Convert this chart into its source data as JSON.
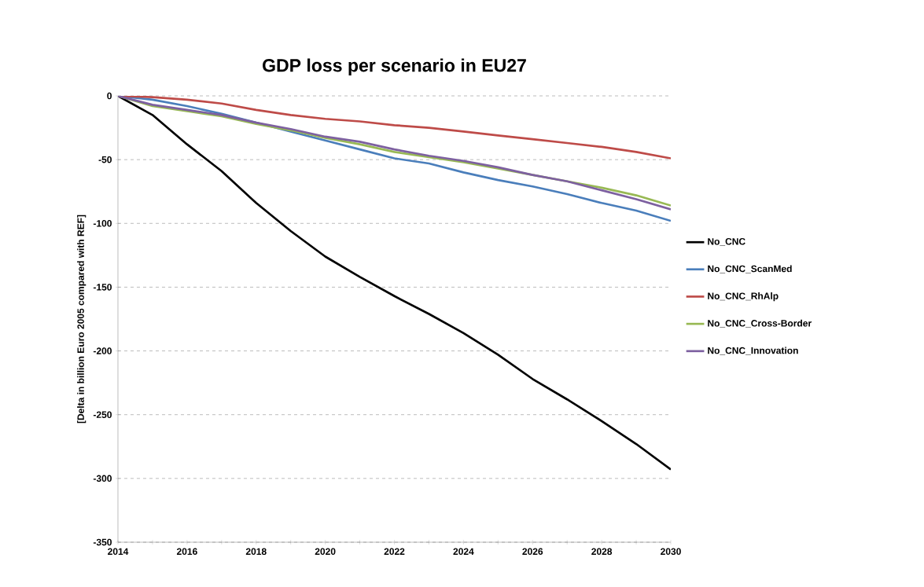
{
  "chart_data": {
    "type": "line",
    "title": "GDP loss per scenario in EU27",
    "ylabel": "[Delta in billion Euro 2005 compared with REF]",
    "x": [
      2014,
      2015,
      2016,
      2017,
      2018,
      2019,
      2020,
      2021,
      2022,
      2023,
      2024,
      2025,
      2026,
      2027,
      2028,
      2029,
      2030
    ],
    "series": [
      {
        "name": "No_CNC",
        "color": "#000000",
        "values": [
          0,
          -15,
          -38,
          -59,
          -84,
          -106,
          -126,
          -142,
          -157,
          -171,
          -186,
          -203,
          -222,
          -238,
          -255,
          -273,
          -293
        ]
      },
      {
        "name": "No_CNC_ScanMed",
        "color": "#4a7ebb",
        "values": [
          0,
          -3,
          -8,
          -14,
          -21,
          -28,
          -35,
          -42,
          -49,
          -53,
          -60,
          -66,
          -71,
          -77,
          -84,
          -90,
          -98
        ]
      },
      {
        "name": "No_CNC_RhAlp",
        "color": "#be4b48",
        "values": [
          0,
          -1,
          -3,
          -6,
          -11,
          -15,
          -18,
          -20,
          -23,
          -25,
          -28,
          -31,
          -34,
          -37,
          -40,
          -44,
          -49
        ]
      },
      {
        "name": "No_CNC_Cross-Border",
        "color": "#98b954",
        "values": [
          0,
          -8,
          -12,
          -16,
          -22,
          -27,
          -33,
          -38,
          -44,
          -48,
          -52,
          -57,
          -62,
          -67,
          -72,
          -78,
          -86
        ]
      },
      {
        "name": "No_CNC_Innovation",
        "color": "#7d60a0",
        "values": [
          0,
          -7,
          -11,
          -15,
          -21,
          -26,
          -32,
          -36,
          -42,
          -47,
          -51,
          -56,
          -62,
          -67,
          -74,
          -81,
          -89
        ]
      }
    ],
    "xlim": [
      2014,
      2030
    ],
    "xticks": [
      2014,
      {
        "value": 2015,
        "label": null
      },
      2016,
      {
        "value": 2017,
        "label": null
      },
      2018,
      {
        "value": 2019,
        "label": null
      },
      2020,
      {
        "value": 2021,
        "label": null
      },
      2022,
      {
        "value": 2023,
        "label": null
      },
      2024,
      {
        "value": 2025,
        "label": null
      },
      2026,
      {
        "value": 2027,
        "label": null
      },
      2028,
      {
        "value": 2029,
        "label": null
      },
      2030
    ],
    "ylim": [
      -350,
      0
    ],
    "yticks": [
      -350,
      -300,
      -250,
      -200,
      -150,
      -100,
      -50,
      0
    ],
    "grid": "y",
    "legend": "right",
    "marker": "none",
    "line_style": "solid"
  }
}
